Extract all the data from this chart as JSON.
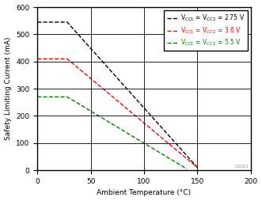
{
  "lines": [
    {
      "label": "V$_{CC1}$ = V$_{CC2}$ = 2.75 V",
      "color": "#000000",
      "x": [
        0,
        28,
        150
      ],
      "y": [
        545,
        545,
        10
      ],
      "linestyle": "--"
    },
    {
      "label": "V$_{CC1}$ = V$_{CC2}$ = 3.6 V",
      "color": "#ff0000",
      "x": [
        0,
        28,
        150
      ],
      "y": [
        410,
        410,
        10
      ],
      "linestyle": "--"
    },
    {
      "label": "V$_{CC1}$ = V$_{CC2}$ = 5.5 V",
      "color": "#008000",
      "x": [
        0,
        28,
        140
      ],
      "y": [
        270,
        270,
        5
      ],
      "linestyle": "--"
    }
  ],
  "xlabel": "Ambient Temperature (°C)",
  "ylabel": "Safety Limiting Current (mA)",
  "xlim": [
    0,
    200
  ],
  "ylim": [
    0,
    600
  ],
  "xticks": [
    0,
    50,
    100,
    150,
    200
  ],
  "yticks": [
    0,
    100,
    200,
    300,
    400,
    500,
    600
  ],
  "watermark": "C2021",
  "figsize": [
    3.31,
    2.54
  ],
  "dpi": 100,
  "label_fontsize": 6.5,
  "tick_fontsize": 6.5,
  "legend_fontsize": 5.5
}
